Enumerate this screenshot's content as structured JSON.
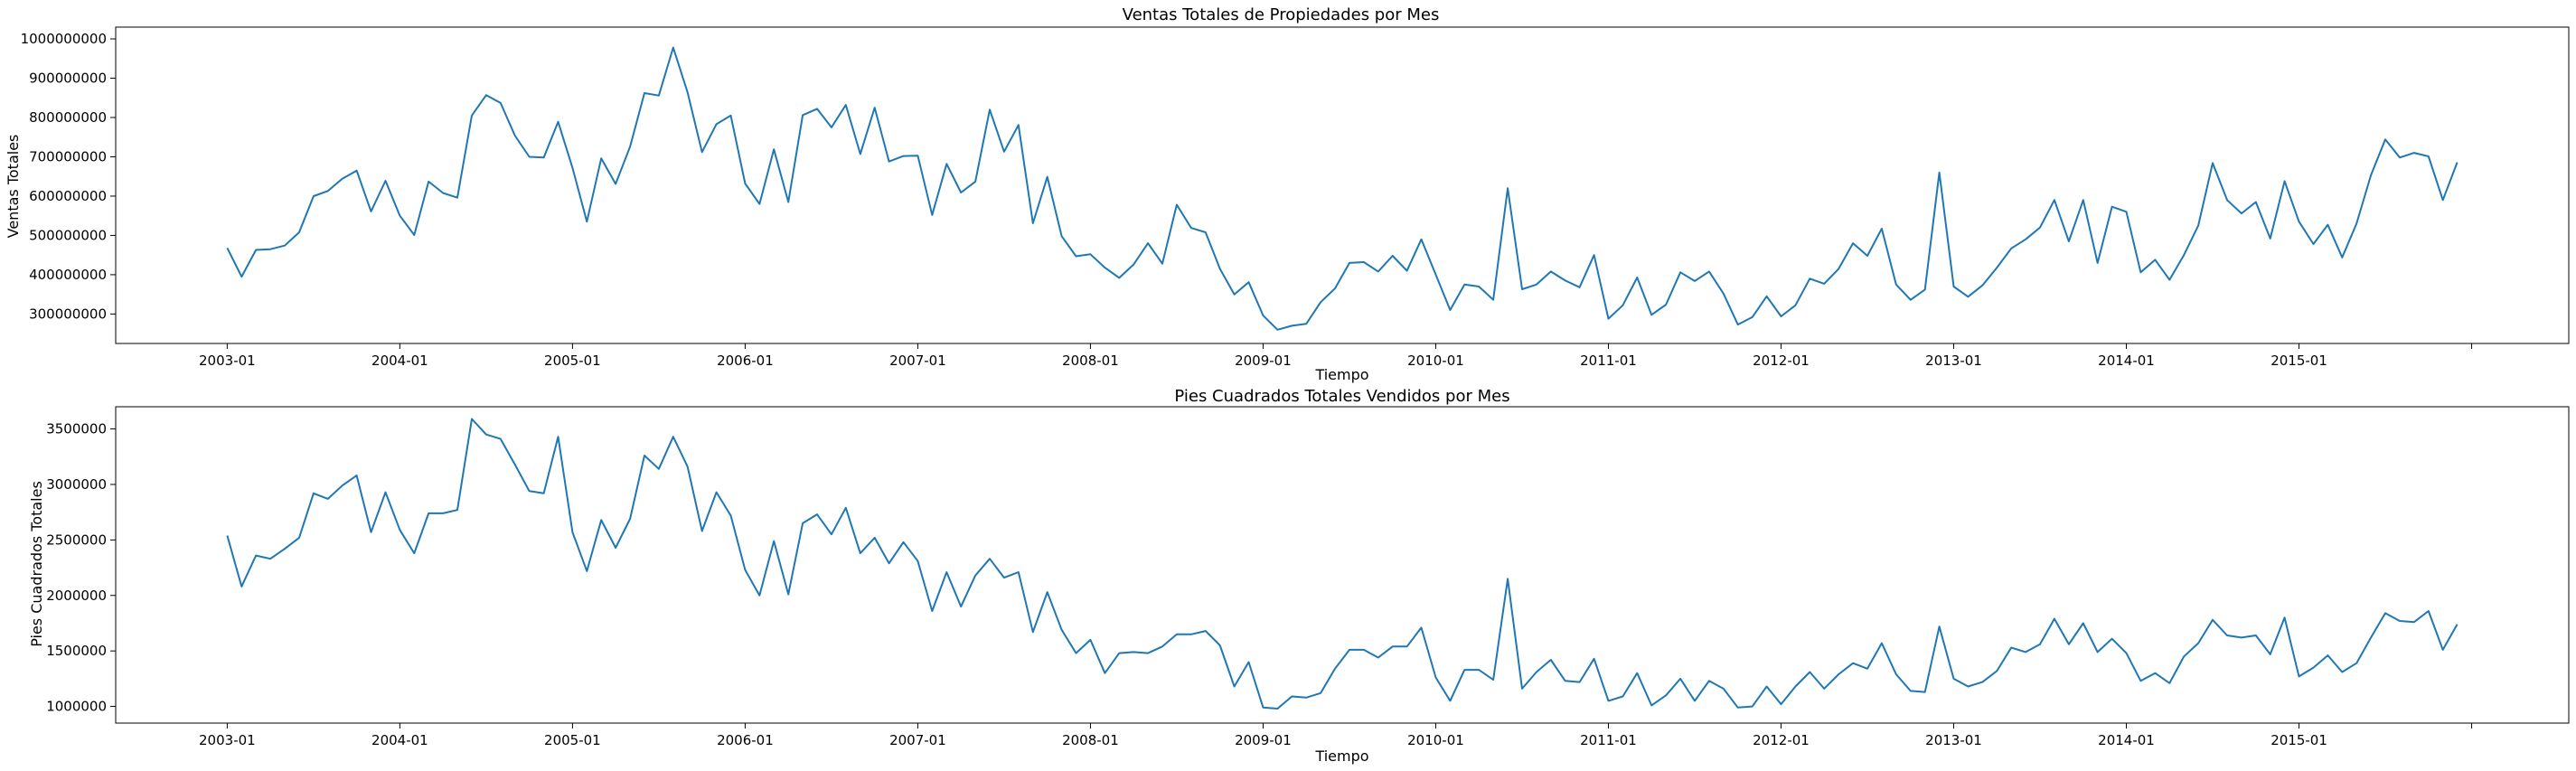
{
  "chart_data": [
    {
      "type": "line",
      "title": "Ventas Totales de Propiedades por Mes",
      "xlabel": "Tiempo",
      "ylabel": "Ventas Totales",
      "x_tick_labels": [
        "2003-01",
        "2004-01",
        "2005-01",
        "2006-01",
        "2007-01",
        "2008-01",
        "2009-01",
        "2010-01",
        "2011-01",
        "2012-01",
        "2013-01",
        "2014-01",
        "2015-01",
        ""
      ],
      "y_ticks": [
        300000000,
        400000000,
        500000000,
        600000000,
        700000000,
        800000000,
        900000000,
        1000000000
      ],
      "y_tick_labels": [
        "300000000",
        "400000000",
        "500000000",
        "600000000",
        "700000000",
        "800000000",
        "900000000",
        "1000000000"
      ],
      "ylim": [
        225000000,
        1030000000
      ],
      "x_start": "2003-01",
      "x_end": "2015-12",
      "color": "#1f77b4",
      "values": [
        468,
        395,
        463,
        465,
        474,
        508,
        600,
        613,
        644,
        665,
        561,
        639,
        550,
        501,
        637,
        608,
        596,
        805,
        857,
        837,
        754,
        700,
        698,
        789,
        672,
        535,
        696,
        631,
        726,
        862,
        856,
        978,
        864,
        712,
        783,
        805,
        632,
        580,
        719,
        585,
        806,
        822,
        775,
        832,
        707,
        825,
        688,
        702,
        703,
        552,
        682,
        609,
        637,
        820,
        713,
        781,
        531,
        649,
        498,
        447,
        452,
        418,
        392,
        426,
        480,
        428,
        578,
        519,
        508,
        415,
        350,
        381,
        296,
        260,
        270,
        275,
        330,
        365,
        430,
        432,
        408,
        448,
        410,
        490,
        400,
        310,
        375,
        370,
        336,
        620,
        363,
        375,
        408,
        385,
        368,
        450,
        288,
        322,
        393,
        298,
        324,
        406,
        384,
        408,
        352,
        273,
        292,
        345,
        294,
        322,
        390,
        377,
        415,
        480,
        448,
        517,
        375,
        336,
        362,
        660,
        370,
        344,
        373,
        418,
        467,
        490,
        520,
        590,
        485,
        590,
        430,
        573,
        560,
        406,
        438,
        387,
        450,
        525,
        684,
        590,
        556,
        585,
        492,
        638,
        535,
        478,
        527,
        444,
        530,
        653,
        744,
        698,
        710,
        701,
        590,
        686
      ],
      "value_unit": 1000000
    },
    {
      "type": "line",
      "title": "Pies Cuadrados Totales Vendidos por Mes",
      "xlabel": "Tiempo",
      "ylabel": "Pies Cuadrados Totales",
      "x_tick_labels": [
        "2003-01",
        "2004-01",
        "2005-01",
        "2006-01",
        "2007-01",
        "2008-01",
        "2009-01",
        "2010-01",
        "2011-01",
        "2012-01",
        "2013-01",
        "2014-01",
        "2015-01",
        ""
      ],
      "y_ticks": [
        1000000,
        1500000,
        2000000,
        2500000,
        3000000,
        3500000
      ],
      "y_tick_labels": [
        "1000000",
        "1500000",
        "2000000",
        "2500000",
        "3000000",
        "3500000"
      ],
      "ylim": [
        850000,
        3700000
      ],
      "x_start": "2003-01",
      "x_end": "2015-12",
      "color": "#1f77b4",
      "values": [
        2540000,
        2080000,
        2360000,
        2330000,
        2420000,
        2520000,
        2920000,
        2870000,
        2990000,
        3080000,
        2570000,
        2930000,
        2590000,
        2380000,
        2740000,
        2740000,
        2770000,
        3590000,
        3450000,
        3410000,
        3180000,
        2940000,
        2920000,
        3430000,
        2570000,
        2220000,
        2680000,
        2430000,
        2690000,
        3260000,
        3140000,
        3430000,
        3160000,
        2580000,
        2930000,
        2720000,
        2230000,
        2000000,
        2490000,
        2010000,
        2650000,
        2730000,
        2550000,
        2790000,
        2380000,
        2520000,
        2290000,
        2480000,
        2310000,
        1860000,
        2210000,
        1900000,
        2180000,
        2330000,
        2160000,
        2210000,
        1670000,
        2030000,
        1690000,
        1480000,
        1600000,
        1300000,
        1480000,
        1490000,
        1480000,
        1540000,
        1650000,
        1650000,
        1680000,
        1550000,
        1180000,
        1400000,
        990000,
        980000,
        1090000,
        1080000,
        1120000,
        1340000,
        1510000,
        1510000,
        1440000,
        1540000,
        1540000,
        1710000,
        1260000,
        1050000,
        1330000,
        1330000,
        1240000,
        2150000,
        1160000,
        1310000,
        1420000,
        1230000,
        1220000,
        1430000,
        1050000,
        1090000,
        1300000,
        1010000,
        1100000,
        1250000,
        1050000,
        1230000,
        1160000,
        990000,
        1000000,
        1180000,
        1020000,
        1180000,
        1310000,
        1160000,
        1290000,
        1390000,
        1340000,
        1570000,
        1290000,
        1140000,
        1130000,
        1720000,
        1250000,
        1180000,
        1220000,
        1320000,
        1530000,
        1490000,
        1560000,
        1790000,
        1560000,
        1750000,
        1490000,
        1610000,
        1480000,
        1230000,
        1300000,
        1210000,
        1450000,
        1570000,
        1780000,
        1640000,
        1620000,
        1640000,
        1470000,
        1800000,
        1270000,
        1350000,
        1460000,
        1310000,
        1390000,
        1620000,
        1840000,
        1770000,
        1760000,
        1860000,
        1510000,
        1740000
      ]
    }
  ]
}
